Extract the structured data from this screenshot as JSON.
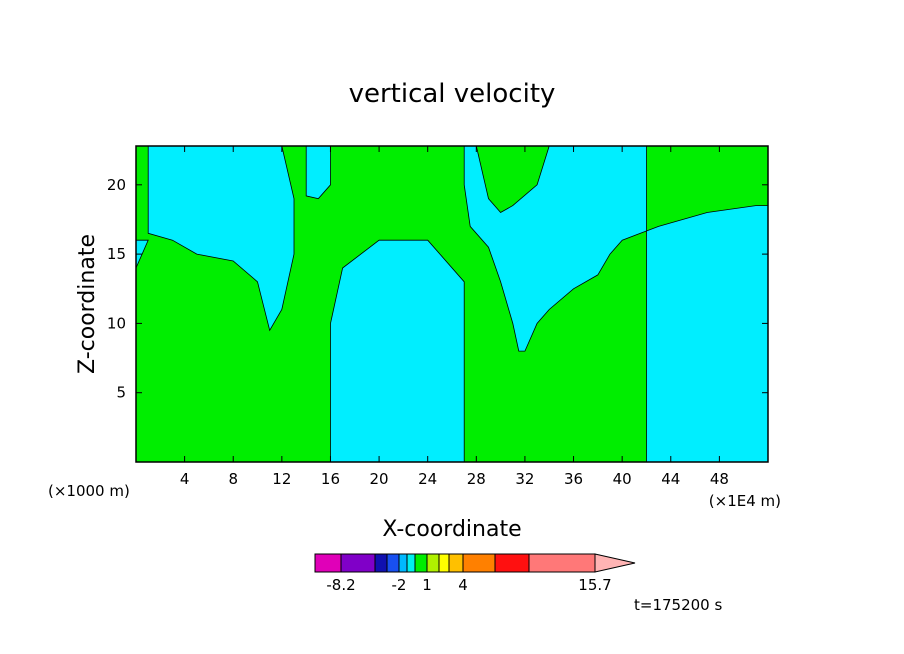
{
  "chart_data": {
    "type": "contour",
    "title": "vertical velocity",
    "xlabel": "X-coordinate",
    "ylabel": "Z-coordinate",
    "x_unit": "(×1E4 m)",
    "y_unit": "(×1000 m)",
    "xlim": [
      0,
      52
    ],
    "ylim": [
      0,
      22.8
    ],
    "x_ticks": [
      4,
      8,
      12,
      16,
      20,
      24,
      28,
      32,
      36,
      40,
      44,
      48
    ],
    "y_ticks": [
      5,
      10,
      15,
      20
    ],
    "time_label": "t=175200 s",
    "colorbar": {
      "colors": [
        "#e000b8",
        "#8000c8",
        "#1010b0",
        "#1850f0",
        "#00b8ff",
        "#00f0f0",
        "#00ee00",
        "#b0f000",
        "#ffff00",
        "#ffc000",
        "#ff8000",
        "#ff1010",
        "#ff7878",
        "#ffb4b4"
      ],
      "tick_labels": [
        "-8.2",
        "-2",
        "1",
        "4",
        "15.7"
      ]
    },
    "fill_colors": {
      "positive": "#00ee00",
      "negative": "#00eeff"
    },
    "regions": [
      {
        "sign": "positive",
        "boundary": [
          [
            0,
            0
          ],
          [
            0,
            14
          ],
          [
            1,
            16
          ],
          [
            0,
            16
          ],
          [
            0,
            22.8
          ],
          [
            1,
            22.8
          ],
          [
            1,
            16.5
          ],
          [
            3,
            16
          ],
          [
            5,
            15
          ],
          [
            8,
            14.5
          ],
          [
            10,
            13
          ],
          [
            11,
            9.5
          ],
          [
            12,
            11
          ],
          [
            13,
            15
          ],
          [
            13,
            19
          ],
          [
            12,
            22.8
          ],
          [
            14,
            22.8
          ],
          [
            14,
            19.2
          ],
          [
            15,
            19
          ],
          [
            16,
            20
          ],
          [
            16,
            22.8
          ],
          [
            27,
            22.8
          ],
          [
            27,
            20
          ],
          [
            27.5,
            17
          ],
          [
            29,
            15.5
          ],
          [
            30,
            13
          ],
          [
            31,
            10
          ],
          [
            31.5,
            8
          ],
          [
            32,
            8
          ],
          [
            33,
            10
          ],
          [
            34,
            11
          ],
          [
            36,
            12.5
          ],
          [
            38,
            13.5
          ],
          [
            39,
            15
          ],
          [
            40,
            16
          ],
          [
            43,
            17
          ],
          [
            47,
            18
          ],
          [
            51,
            18.5
          ],
          [
            52,
            18.5
          ],
          [
            52,
            22.8
          ],
          [
            42,
            22.8
          ],
          [
            42,
            0
          ],
          [
            27,
            0
          ],
          [
            27,
            13
          ],
          [
            24,
            16
          ],
          [
            20,
            16
          ],
          [
            17,
            14
          ],
          [
            16,
            10
          ],
          [
            16,
            0
          ]
        ]
      },
      {
        "sign": "positive",
        "boundary": [
          [
            28,
            22.8
          ],
          [
            29,
            19
          ],
          [
            30,
            18
          ],
          [
            31,
            18.5
          ],
          [
            33,
            20
          ],
          [
            34,
            22.8
          ]
        ]
      }
    ]
  }
}
